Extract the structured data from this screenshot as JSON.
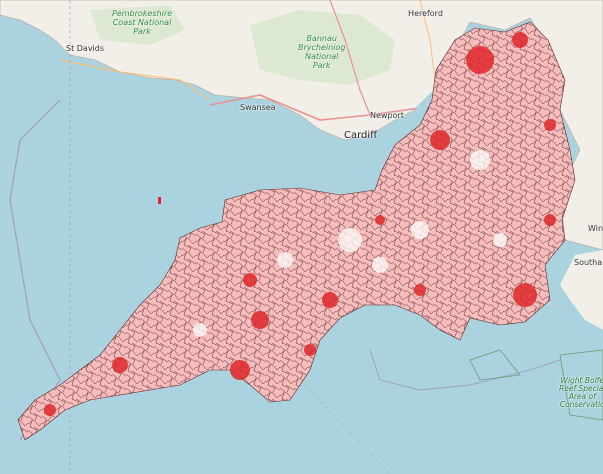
{
  "map": {
    "labels": {
      "st_davids": "St Davids",
      "pembrokeshire": [
        "Pembrokeshire",
        "Coast National",
        "Park"
      ],
      "bannau": [
        "Bannau",
        "Brycheiniog",
        "National",
        "Park"
      ],
      "hereford": "Hereford",
      "swansea": "Swansea",
      "newport": "Newport",
      "cardiff": "Cardiff",
      "win": "Win",
      "southa": "Southa",
      "wight": [
        "Wight Bolfe",
        "Reef Special",
        "Area of",
        "Conservatio"
      ]
    },
    "colors": {
      "sea": "#aad3df",
      "land": "#f2efe9",
      "park": "#d4e6c8",
      "choropleth_light": "#fde0dd",
      "choropleth_mid": "#f08080",
      "choropleth_dark": "#e31a1c",
      "boundary": "#000000"
    }
  }
}
